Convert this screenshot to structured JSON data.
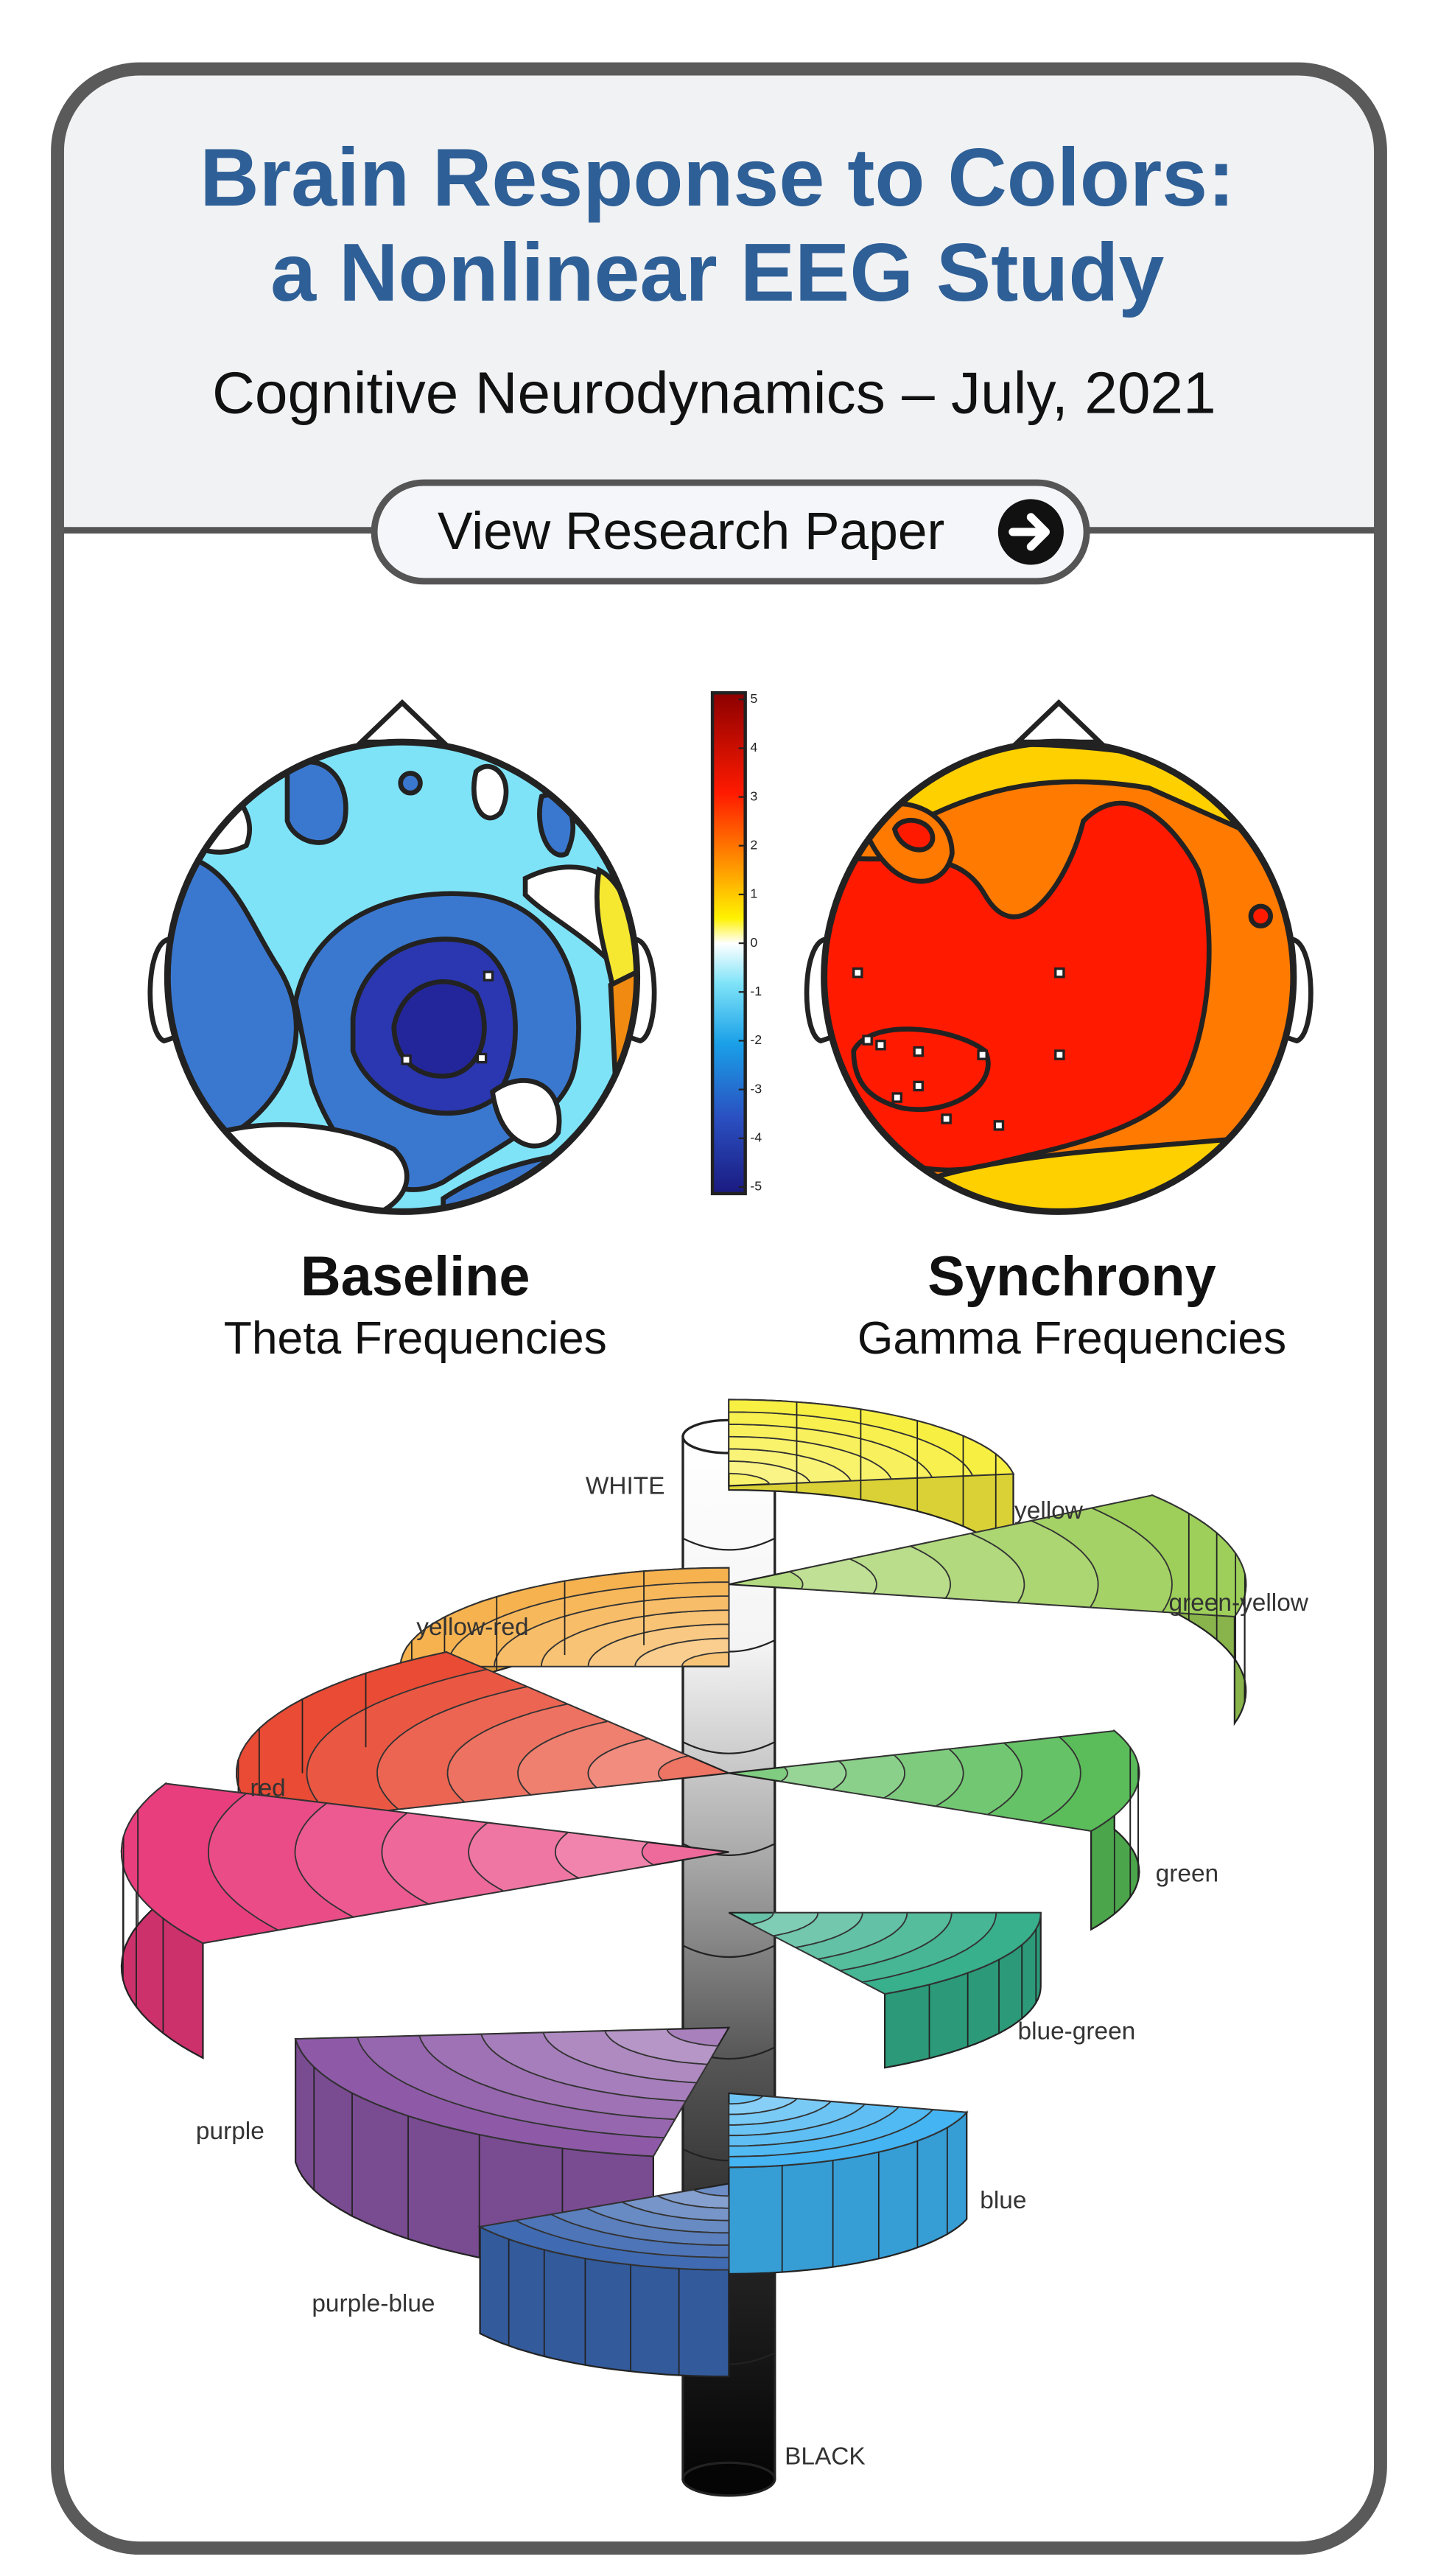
{
  "header": {
    "title_lines": [
      "Brain Response to Colors:",
      "a Nonlinear EEG Study"
    ],
    "subtitle": "Cognitive Neurodynamics – July, 2021"
  },
  "button": {
    "label": "View Research Paper"
  },
  "topomaps": [
    {
      "title": "Baseline",
      "subtitle": "Theta Frequencies"
    },
    {
      "title": "Synchrony",
      "subtitle": "Gamma Frequencies"
    }
  ],
  "colorbar": {
    "ticks": [
      5,
      4,
      3,
      2,
      1,
      0,
      -1,
      -2,
      -3,
      -4,
      -5
    ]
  },
  "color_solid": {
    "labels": [
      "WHITE",
      "yellow",
      "green-yellow",
      "yellow-red",
      "red",
      "green",
      "blue-green",
      "purple",
      "blue",
      "purple-blue",
      "BLACK"
    ]
  }
}
